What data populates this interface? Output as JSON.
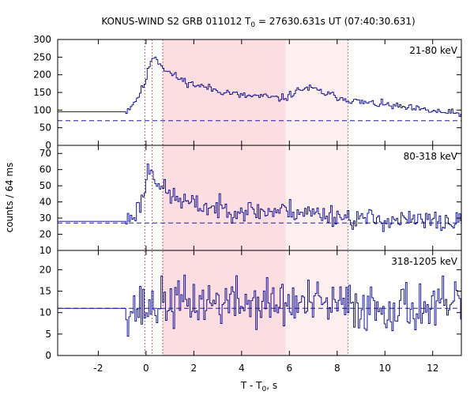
{
  "chart_data": {
    "type": "line",
    "title": {
      "prefix": "KONUS-WIND S2 GRB 011012 T",
      "sub": "0",
      "suffix": " = 27630.631s UT (07:40:30.631)"
    },
    "xlabel": {
      "prefix": "T - T",
      "sub": "0",
      "suffix": ", s"
    },
    "ylabel": "counts / 64 ms",
    "xlim": [
      -3.7,
      13.2
    ],
    "x_ticks": [
      -2,
      0,
      2,
      4,
      6,
      8,
      10,
      12
    ],
    "x_tick_labels": [
      "-2",
      "0",
      "2",
      "4",
      "6",
      "8",
      "10",
      "12"
    ],
    "shaded_regions": [
      {
        "x0": 0.7,
        "x1": 5.85,
        "color": "#fcdde1"
      },
      {
        "x0": 5.85,
        "x1": 8.45,
        "color": "#fdeef0"
      }
    ],
    "vertical_markers": [
      {
        "x": -0.05,
        "color": "#a04040"
      },
      {
        "x": 0.25,
        "color": "#a04040"
      },
      {
        "x": 0.7,
        "color": "#a04040"
      },
      {
        "x": 8.45,
        "color": "#606060"
      }
    ],
    "colors": {
      "curve": "#00008b",
      "background": "#1f1fa8"
    },
    "panels": [
      {
        "band": "21-80 keV",
        "ylim": [
          0,
          300
        ],
        "y_ticks": [
          0,
          50,
          100,
          150,
          200,
          250,
          300
        ],
        "background_level": 70,
        "pre_burst_x": [
          -3.7,
          -0.85
        ],
        "pre_burst_value": 95,
        "anchors": [
          [
            -0.85,
            95
          ],
          [
            -0.4,
            130
          ],
          [
            -0.2,
            155
          ],
          [
            0.0,
            185
          ],
          [
            0.1,
            215
          ],
          [
            0.2,
            240
          ],
          [
            0.3,
            255
          ],
          [
            0.45,
            245
          ],
          [
            0.6,
            232
          ],
          [
            0.8,
            215
          ],
          [
            1.0,
            205
          ],
          [
            1.5,
            185
          ],
          [
            2.0,
            172
          ],
          [
            2.5,
            165
          ],
          [
            3.0,
            155
          ],
          [
            3.5,
            150
          ],
          [
            4.0,
            140
          ],
          [
            4.5,
            140
          ],
          [
            5.0,
            138
          ],
          [
            5.5,
            133
          ],
          [
            5.85,
            135
          ],
          [
            6.2,
            150
          ],
          [
            6.6,
            162
          ],
          [
            7.0,
            160
          ],
          [
            7.5,
            147
          ],
          [
            8.0,
            138
          ],
          [
            8.45,
            130
          ],
          [
            9.0,
            122
          ],
          [
            10.0,
            115
          ],
          [
            11.0,
            105
          ],
          [
            12.0,
            97
          ],
          [
            13.2,
            88
          ]
        ],
        "noise_amplitude": 9,
        "seed": 11
      },
      {
        "band": "80-318 keV",
        "ylim": [
          10,
          75
        ],
        "y_ticks": [
          10,
          20,
          30,
          40,
          50,
          60,
          70
        ],
        "background_level": 27,
        "pre_burst_x": [
          -3.7,
          -0.85
        ],
        "pre_burst_value": 28,
        "anchors": [
          [
            -0.85,
            28
          ],
          [
            -0.4,
            34
          ],
          [
            -0.15,
            42
          ],
          [
            0.0,
            52
          ],
          [
            0.1,
            62
          ],
          [
            0.25,
            60
          ],
          [
            0.45,
            54
          ],
          [
            0.7,
            48
          ],
          [
            1.0,
            44
          ],
          [
            1.5,
            41
          ],
          [
            2.0,
            38
          ],
          [
            3.0,
            36
          ],
          [
            4.0,
            35
          ],
          [
            5.0,
            34
          ],
          [
            6.0,
            35
          ],
          [
            7.0,
            33
          ],
          [
            8.0,
            32
          ],
          [
            8.45,
            30
          ],
          [
            10.0,
            29
          ],
          [
            12.0,
            28
          ],
          [
            13.2,
            27
          ]
        ],
        "noise_amplitude": 5.5,
        "seed": 23
      },
      {
        "band": "318-1205 keV",
        "ylim": [
          0,
          24.5
        ],
        "y_ticks": [
          0,
          5,
          10,
          15,
          20
        ],
        "background_level": 11,
        "pre_burst_x": [
          -3.7,
          -0.85
        ],
        "pre_burst_value": 11,
        "anchors": [
          [
            -0.85,
            11
          ],
          [
            0.0,
            11
          ],
          [
            0.5,
            12
          ],
          [
            1.0,
            12.2
          ],
          [
            2.0,
            12.4
          ],
          [
            3.0,
            12.5
          ],
          [
            4.0,
            12.3
          ],
          [
            5.0,
            12.2
          ],
          [
            6.0,
            12.0
          ],
          [
            7.0,
            11.8
          ],
          [
            8.45,
            11.5
          ],
          [
            10.0,
            11.3
          ],
          [
            12.0,
            11.2
          ],
          [
            13.2,
            11.0
          ]
        ],
        "noise_amplitude": 4.8,
        "seed": 37
      }
    ],
    "bin_width": 0.064,
    "grid": false,
    "legend": "none"
  }
}
